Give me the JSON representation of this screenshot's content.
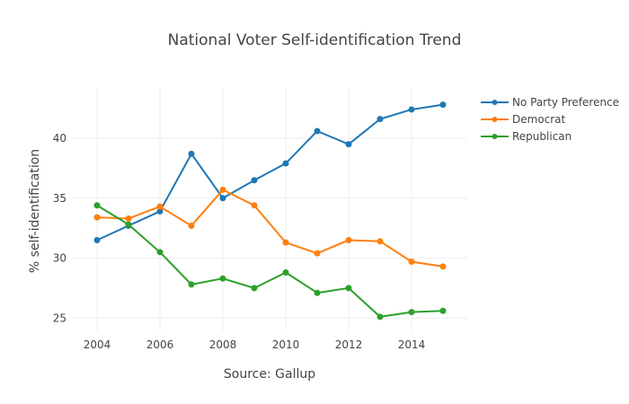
{
  "chart_data": {
    "type": "line",
    "title": "National Voter Self-identification Trend",
    "xlabel": "Source: Gallup",
    "ylabel": "% self-identification",
    "xlim": [
      2003.5,
      2015.6
    ],
    "ylim": [
      23.9,
      45
    ],
    "xticks": [
      2004,
      2006,
      2008,
      2010,
      2012,
      2014
    ],
    "xtick_labels": [
      "2004",
      "2006",
      "2008",
      "2010",
      "2012",
      "2014"
    ],
    "yticks": [
      25,
      30,
      35,
      40
    ],
    "ytick_labels": [
      "25",
      "30",
      "35",
      "40"
    ],
    "grid": true,
    "legend_position": "top-right",
    "x": [
      2004,
      2005,
      2006,
      2007,
      2008,
      2009,
      2010,
      2011,
      2012,
      2013,
      2014,
      2015
    ],
    "series": [
      {
        "name": "No Party Preference",
        "color": "#1f77b4",
        "values": [
          31.5,
          32.7,
          33.9,
          38.7,
          35.0,
          36.5,
          37.9,
          40.6,
          39.5,
          41.6,
          42.4,
          42.8
        ]
      },
      {
        "name": "Democrat",
        "color": "#ff7f0e",
        "values": [
          33.4,
          33.3,
          34.3,
          32.7,
          35.7,
          34.4,
          31.3,
          30.4,
          31.5,
          31.4,
          29.7,
          29.3
        ]
      },
      {
        "name": "Republican",
        "color": "#2ca02c",
        "values": [
          34.4,
          32.8,
          30.5,
          27.8,
          28.3,
          27.5,
          28.8,
          27.1,
          27.5,
          25.1,
          25.5,
          25.6
        ]
      }
    ]
  }
}
